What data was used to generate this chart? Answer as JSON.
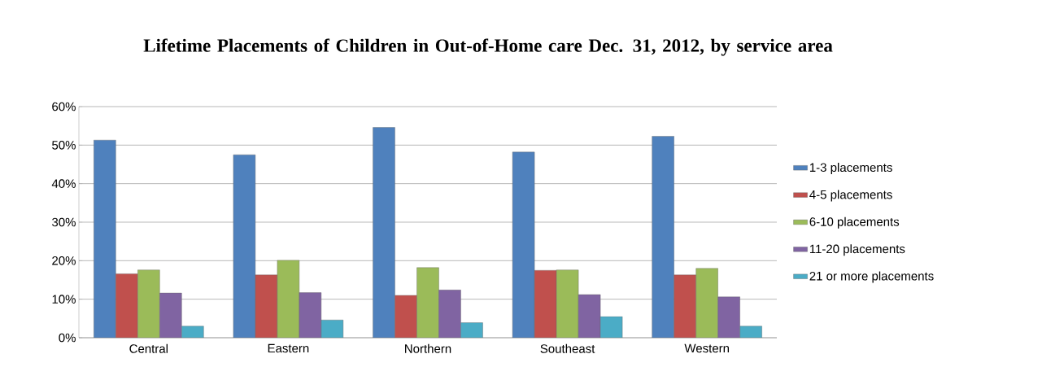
{
  "chart_data": {
    "type": "bar",
    "title": "Lifetime Placements of Children in Out-of-Home care Dec. 31, 2012, by service area",
    "categories": [
      "Central",
      "Eastern",
      "Northern",
      "Southeast",
      "Western"
    ],
    "series": [
      {
        "name": "1-3 placements",
        "color": "#4f81bd",
        "values": [
          51.3,
          47.5,
          54.6,
          48.2,
          52.3
        ]
      },
      {
        "name": "4-5 placements",
        "color": "#c0504d",
        "values": [
          16.6,
          16.3,
          11.0,
          17.5,
          16.3
        ]
      },
      {
        "name": "6-10 placements",
        "color": "#9bbb59",
        "values": [
          17.6,
          20.1,
          18.2,
          17.6,
          18.0
        ]
      },
      {
        "name": "11-20 placements",
        "color": "#8064a2",
        "values": [
          11.6,
          11.7,
          12.4,
          11.2,
          10.6
        ]
      },
      {
        "name": "21 or more placements",
        "color": "#4bacc6",
        "values": [
          3.0,
          4.6,
          3.9,
          5.5,
          3.0
        ]
      }
    ],
    "ylim": [
      0,
      60
    ],
    "yticks": [
      {
        "value": 0,
        "label": "0%"
      },
      {
        "value": 10,
        "label": "10%"
      },
      {
        "value": 20,
        "label": "20%"
      },
      {
        "value": 30,
        "label": "30%"
      },
      {
        "value": 40,
        "label": "40%"
      },
      {
        "value": 50,
        "label": "50%"
      },
      {
        "value": 60,
        "label": "60%"
      }
    ],
    "grid": "y",
    "legend": "right"
  }
}
